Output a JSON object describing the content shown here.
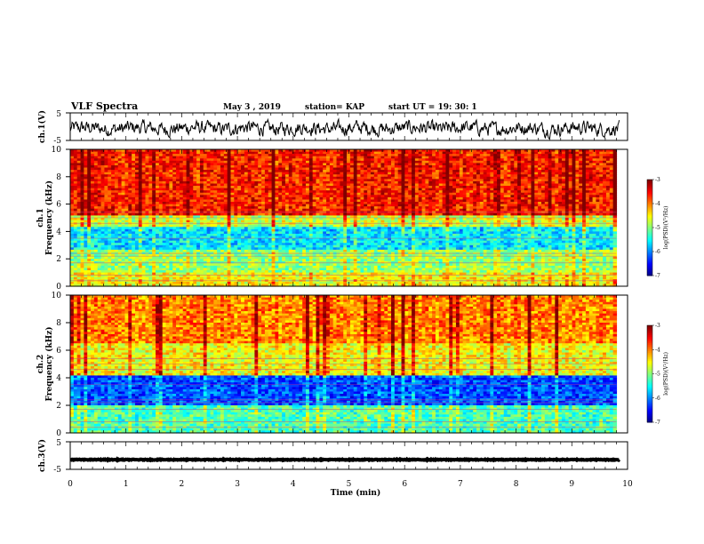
{
  "header": {
    "title": "VLF Spectra",
    "date": "May 3 , 2019",
    "station": "station= KAP",
    "start_time": "start UT = 19: 30: 1"
  },
  "chart_data": [
    {
      "type": "line",
      "id": "ch1-waveform",
      "ylabel": "ch.1(V)",
      "ylim": [
        -5,
        5
      ],
      "ytick_labels": [
        "5",
        "-5"
      ],
      "xlim": [
        0,
        10
      ],
      "description_values": {
        "mean": -0.6,
        "amplitude": 2.2
      }
    },
    {
      "type": "heatmap",
      "id": "ch1-spectrogram",
      "ylabel": "ch.1\nFrequency (kHz)",
      "ylabel_lines": [
        "ch.1",
        "Frequency (kHz)"
      ],
      "ylim": [
        0,
        10
      ],
      "yticks": [
        0,
        2,
        4,
        6,
        8,
        10
      ],
      "xlim": [
        0,
        10
      ],
      "data_xmax": 9.8,
      "colorbar": {
        "label": "log(PSD)(V²/Hz)",
        "range": [
          -7,
          -3
        ],
        "ticks": [
          -3,
          -4,
          -5,
          -6,
          -7
        ]
      },
      "bands": [
        {
          "from_khz": 5.2,
          "to_khz": 10,
          "level": -3.6
        },
        {
          "from_khz": 4.3,
          "to_khz": 5.2,
          "level": -4.7
        },
        {
          "from_khz": 2.6,
          "to_khz": 4.3,
          "level": -5.6
        },
        {
          "from_khz": 1.0,
          "to_khz": 2.6,
          "level": -4.9
        },
        {
          "from_khz": 0.0,
          "to_khz": 1.0,
          "level": -4.5
        }
      ]
    },
    {
      "type": "heatmap",
      "id": "ch2-spectrogram",
      "ylabel": "ch.2\nFrequency (kHz)",
      "ylabel_lines": [
        "ch.2",
        "Frequency (kHz)"
      ],
      "ylim": [
        0,
        10
      ],
      "yticks": [
        0,
        2,
        4,
        6,
        8,
        10
      ],
      "xlim": [
        0,
        10
      ],
      "data_xmax": 9.8,
      "colorbar": {
        "label": "log(PSD)(V²/Hz)",
        "range": [
          -7,
          -3
        ],
        "ticks": [
          -3,
          -4,
          -5,
          -6,
          -7
        ]
      },
      "bands": [
        {
          "from_khz": 6.5,
          "to_khz": 10,
          "level": -4.0
        },
        {
          "from_khz": 4.2,
          "to_khz": 6.5,
          "level": -4.5
        },
        {
          "from_khz": 2.0,
          "to_khz": 4.2,
          "level": -6.2
        },
        {
          "from_khz": 0.0,
          "to_khz": 2.0,
          "level": -5.2
        }
      ]
    },
    {
      "type": "line",
      "id": "ch3-waveform",
      "ylabel": "ch.3(V)",
      "ylim": [
        -5,
        5
      ],
      "ytick_labels": [
        "5",
        "-5"
      ],
      "xlim": [
        0,
        10
      ],
      "description_values": {
        "mean": -1.5,
        "amplitude": 0.3
      }
    }
  ],
  "xaxis": {
    "label": "Time (min)",
    "ticks": [
      0,
      1,
      2,
      3,
      4,
      5,
      6,
      7,
      8,
      9,
      10
    ],
    "range": [
      0,
      10
    ]
  },
  "colors": {
    "low": "#00008c",
    "mid": "#00ff80",
    "high": "#ff0000"
  }
}
